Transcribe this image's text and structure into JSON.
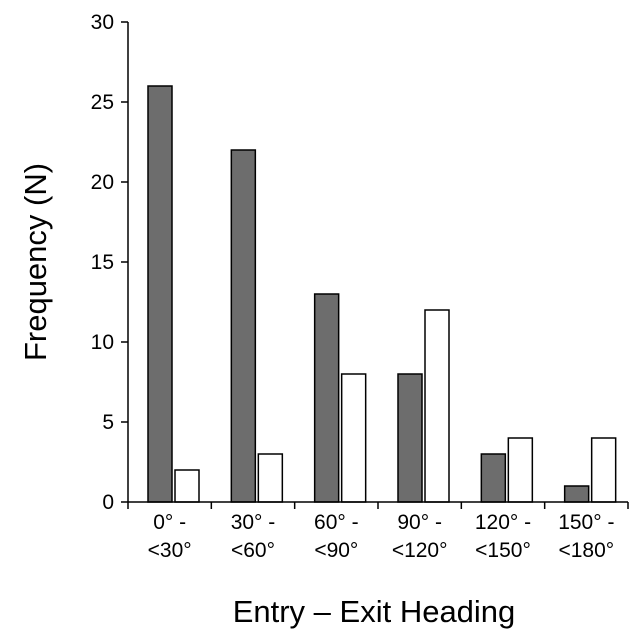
{
  "chart_data": {
    "type": "bar",
    "title": "",
    "xlabel": "Entry – Exit Heading",
    "ylabel": "Frequency (N)",
    "ylim": [
      0,
      30
    ],
    "yticks": [
      "0",
      "5",
      "10",
      "15",
      "20",
      "25",
      "30"
    ],
    "grid": false,
    "categories": [
      [
        "0° -",
        "<30°"
      ],
      [
        "30° -",
        "<60°"
      ],
      [
        "60° -",
        "<90°"
      ],
      [
        "90° -",
        "<120°"
      ],
      [
        "120° -",
        "<150°"
      ],
      [
        "150° -",
        "<180°"
      ]
    ],
    "series": [
      {
        "values": [
          26,
          22,
          13,
          8,
          3,
          1
        ],
        "color": "#6d6d6d"
      },
      {
        "values": [
          2,
          3,
          8,
          12,
          4,
          4
        ],
        "color": "#ffffff"
      }
    ]
  }
}
